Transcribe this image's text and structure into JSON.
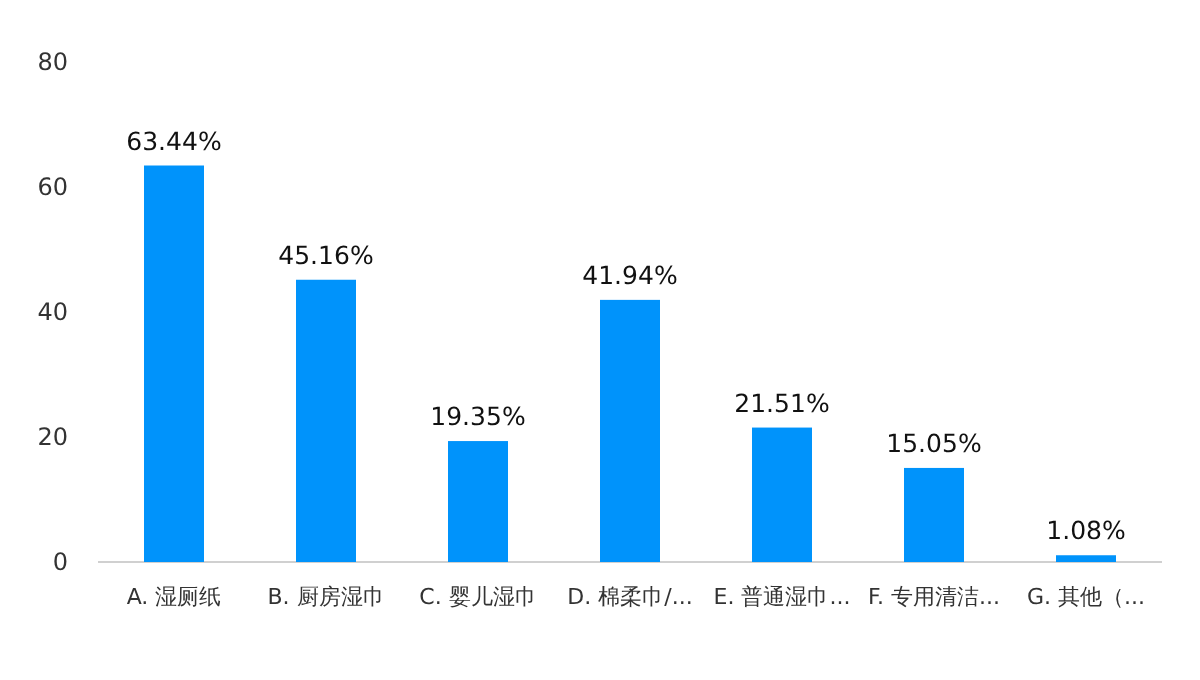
{
  "chart_data": {
    "type": "bar",
    "categories": [
      "A. 湿厕纸",
      "B. 厨房湿巾",
      "C. 婴儿湿巾",
      "D. 棉柔巾/...",
      "E. 普通湿巾...",
      "F. 专用清洁...",
      "G. 其他（..."
    ],
    "values": [
      63.44,
      45.16,
      19.35,
      41.94,
      21.51,
      15.05,
      1.08
    ],
    "value_labels": [
      "63.44%",
      "45.16%",
      "19.35%",
      "41.94%",
      "21.51%",
      "15.05%",
      "1.08%"
    ],
    "color": "#0093fb",
    "ylim": [
      0,
      80
    ],
    "yticks": [
      0,
      20,
      40,
      60,
      80
    ]
  }
}
